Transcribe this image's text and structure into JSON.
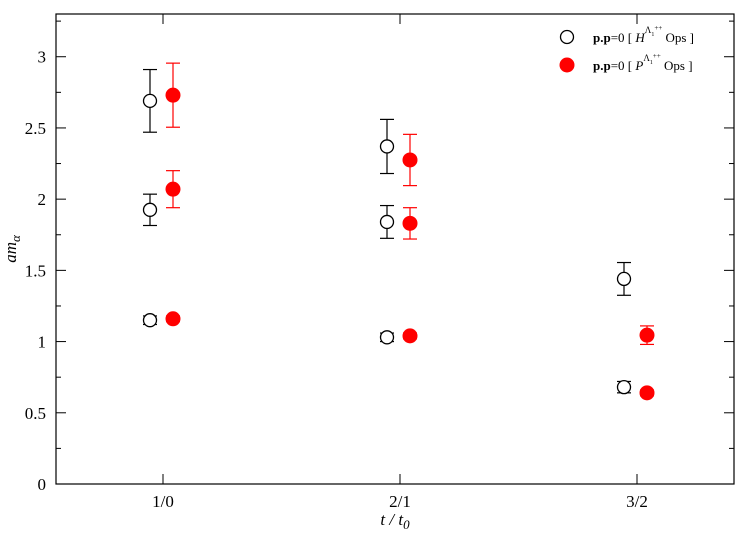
{
  "chart_data": {
    "type": "scatter",
    "xlabel": {
      "main": "t / t",
      "sub": "0"
    },
    "ylabel": {
      "main": "am",
      "sub": "α"
    },
    "categories": [
      "1/0",
      "2/1",
      "3/2"
    ],
    "ylim": [
      0,
      3.3
    ],
    "yticks": [
      "0",
      "0.5",
      "1",
      "1.5",
      "2",
      "2.5",
      "3"
    ],
    "grid": false,
    "legend_position": "top-right",
    "series": [
      {
        "name": "p.p=0 [ H^{A1++} Ops ]",
        "legend": {
          "prefix": "p.p",
          "eq": "=0 [ ",
          "symbol": "H",
          "sup": "Λ",
          "supsub": "1",
          "supplus": "++",
          "suffix": " Ops ]"
        },
        "marker": "open-circle",
        "color": "#000000",
        "points": [
          {
            "x": "1/0",
            "y": 1.15,
            "err": 0.03
          },
          {
            "x": "1/0",
            "y": 1.925,
            "err": 0.11
          },
          {
            "x": "1/0",
            "y": 2.69,
            "err": 0.22
          },
          {
            "x": "2/1",
            "y": 1.03,
            "err": 0.03
          },
          {
            "x": "2/1",
            "y": 1.84,
            "err": 0.115
          },
          {
            "x": "2/1",
            "y": 2.37,
            "err": 0.19
          },
          {
            "x": "3/2",
            "y": 0.68,
            "err": 0.04
          },
          {
            "x": "3/2",
            "y": 1.44,
            "err": 0.115
          }
        ]
      },
      {
        "name": "p.p=0 [ P^{A1++} Ops ]",
        "legend": {
          "prefix": "p.p",
          "eq": "=0 [ ",
          "symbol": "P",
          "sup": "Λ",
          "supsub": "1",
          "supplus": "++",
          "suffix": " Ops ]"
        },
        "marker": "filled-circle",
        "color": "#ff0000",
        "points": [
          {
            "x": "1/0",
            "y": 1.16,
            "err": 0.02
          },
          {
            "x": "1/0",
            "y": 2.07,
            "err": 0.13
          },
          {
            "x": "1/0",
            "y": 2.73,
            "err": 0.225
          },
          {
            "x": "2/1",
            "y": 1.04,
            "err": 0.02
          },
          {
            "x": "2/1",
            "y": 1.83,
            "err": 0.11
          },
          {
            "x": "2/1",
            "y": 2.275,
            "err": 0.18
          },
          {
            "x": "3/2",
            "y": 0.64,
            "err": 0.02
          },
          {
            "x": "3/2",
            "y": 1.045,
            "err": 0.065
          }
        ]
      }
    ]
  }
}
